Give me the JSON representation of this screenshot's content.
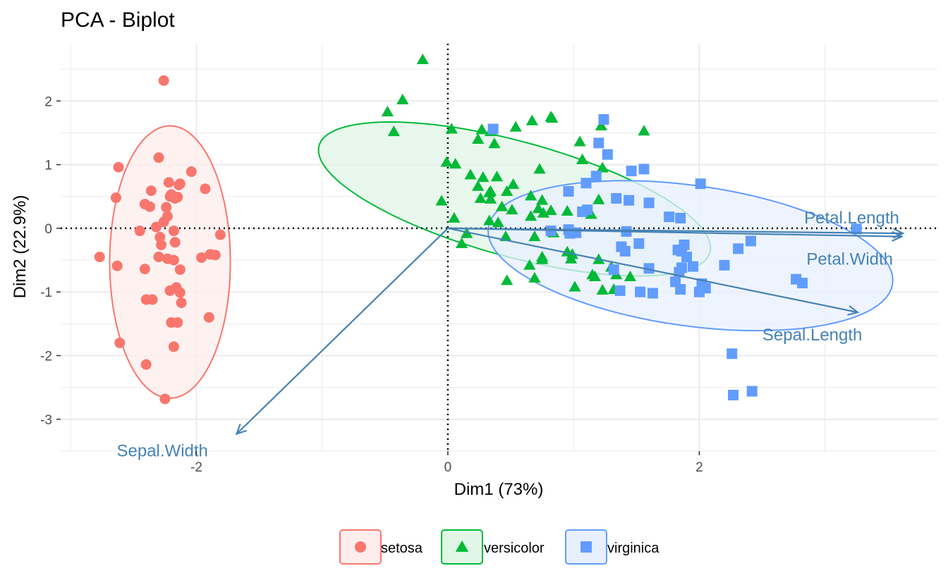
{
  "chart_data": {
    "type": "scatter",
    "title": "PCA - Biplot",
    "xlabel": "Dim1 (73%)",
    "ylabel": "Dim2 (22.9%)",
    "xlim": [
      -3.08,
      3.9
    ],
    "ylim": [
      -3.5,
      2.9
    ],
    "x_ticks": [
      -2,
      0,
      2
    ],
    "y_ticks": [
      -3,
      -2,
      -1,
      0,
      1,
      2
    ],
    "x_tick_labels": [
      "-2",
      "0",
      "2"
    ],
    "y_tick_labels": [
      "-3",
      "-2",
      "-1",
      "0",
      "1",
      "2"
    ],
    "grid": true,
    "legend_position": "bottom",
    "reference_lines": {
      "x": 0,
      "y": 0,
      "style": "dotted"
    },
    "series": [
      {
        "name": "setosa",
        "marker": "circle",
        "color": "#F8766D",
        "ellipse_fill": "#FEEDEC",
        "points": [
          [
            -2.26,
            2.32
          ],
          [
            -2.3,
            1.11
          ],
          [
            -2.62,
            0.96
          ],
          [
            -2.04,
            0.89
          ],
          [
            -2.64,
            0.48
          ],
          [
            -2.22,
            0.72
          ],
          [
            -2.13,
            0.7
          ],
          [
            -2.14,
            0.68
          ],
          [
            -1.93,
            0.62
          ],
          [
            -2.36,
            0.59
          ],
          [
            -2.2,
            0.53
          ],
          [
            -2.21,
            0.5
          ],
          [
            -2.15,
            0.49
          ],
          [
            -2.17,
            0.47
          ],
          [
            -2.41,
            0.38
          ],
          [
            -2.37,
            0.34
          ],
          [
            -2.24,
            0.33
          ],
          [
            -2.23,
            0.19
          ],
          [
            -2.26,
            0.1
          ],
          [
            -2.32,
            0.02
          ],
          [
            -2.18,
            -0.04
          ],
          [
            -2.45,
            -0.04
          ],
          [
            -1.81,
            -0.1
          ],
          [
            -2.29,
            -0.14
          ],
          [
            -2.17,
            -0.22
          ],
          [
            -2.28,
            -0.26
          ],
          [
            -1.89,
            -0.41
          ],
          [
            -1.85,
            -0.42
          ],
          [
            -2.77,
            -0.45
          ],
          [
            -2.3,
            -0.45
          ],
          [
            -1.96,
            -0.46
          ],
          [
            -2.23,
            -0.48
          ],
          [
            -2.18,
            -0.5
          ],
          [
            -2.63,
            -0.59
          ],
          [
            -2.41,
            -0.64
          ],
          [
            -2.13,
            -0.65
          ],
          [
            -2.16,
            -0.93
          ],
          [
            -2.21,
            -0.98
          ],
          [
            -2.13,
            -1.01
          ],
          [
            -2.4,
            -1.12
          ],
          [
            -2.35,
            -1.12
          ],
          [
            -2.12,
            -1.17
          ],
          [
            -1.9,
            -1.4
          ],
          [
            -2.15,
            -1.48
          ],
          [
            -2.2,
            -1.48
          ],
          [
            -2.61,
            -1.8
          ],
          [
            -2.18,
            -1.86
          ],
          [
            -2.4,
            -2.14
          ],
          [
            -2.25,
            -2.68
          ]
        ]
      },
      {
        "name": "versicolor",
        "marker": "triangle",
        "color": "#00BA38",
        "ellipse_fill": "#E1F6E6",
        "points": [
          [
            -0.2,
            2.65
          ],
          [
            -0.36,
            2.02
          ],
          [
            -0.48,
            1.83
          ],
          [
            -0.43,
            1.52
          ],
          [
            0.82,
            1.75
          ],
          [
            0.83,
            1.73
          ],
          [
            0.03,
            1.56
          ],
          [
            0.27,
            1.55
          ],
          [
            1.22,
            1.61
          ],
          [
            1.56,
            1.53
          ],
          [
            0.54,
            1.59
          ],
          [
            0.67,
            1.69
          ],
          [
            0.34,
            1.52
          ],
          [
            0.37,
            1.33
          ],
          [
            1.05,
            1.36
          ],
          [
            0.24,
            1.4
          ],
          [
            1.07,
            1.08
          ],
          [
            -0.01,
            1.04
          ],
          [
            0.06,
            1.01
          ],
          [
            0.73,
            0.93
          ],
          [
            1.23,
            0.95
          ],
          [
            0.18,
            0.84
          ],
          [
            0.28,
            0.8
          ],
          [
            0.39,
            0.81
          ],
          [
            0.24,
            0.66
          ],
          [
            0.34,
            0.58
          ],
          [
            0.52,
            0.69
          ],
          [
            0.66,
            0.51
          ],
          [
            1.2,
            0.45
          ],
          [
            0.33,
            0.56
          ],
          [
            0.47,
            0.58
          ],
          [
            0.34,
            0.46
          ],
          [
            0.75,
            0.44
          ],
          [
            -0.05,
            0.43
          ],
          [
            0.72,
            0.31
          ],
          [
            0.82,
            0.28
          ],
          [
            0.76,
            0.24
          ],
          [
            0.26,
            0.47
          ],
          [
            0.43,
            0.34
          ],
          [
            0.51,
            0.29
          ],
          [
            0.95,
            0.27
          ],
          [
            1.14,
            0.22
          ],
          [
            0.4,
            0.09
          ],
          [
            0.66,
            0.19
          ],
          [
            0.33,
            0.12
          ],
          [
            0.05,
            0.16
          ],
          [
            0.15,
            -0.08
          ],
          [
            0.46,
            -0.13
          ],
          [
            0.69,
            -0.13
          ],
          [
            0.84,
            -0.07
          ],
          [
            0.11,
            -0.24
          ],
          [
            0.99,
            -0.41
          ],
          [
            0.75,
            -0.45
          ],
          [
            0.98,
            -0.48
          ],
          [
            1.2,
            -0.49
          ],
          [
            0.95,
            -0.37
          ],
          [
            0.75,
            -0.49
          ],
          [
            0.65,
            -0.58
          ],
          [
            1.15,
            -0.73
          ],
          [
            1.01,
            -0.92
          ],
          [
            1.17,
            -0.76
          ],
          [
            1.34,
            -0.73
          ],
          [
            1.23,
            -0.97
          ],
          [
            1.32,
            -0.96
          ],
          [
            0.69,
            -0.78
          ],
          [
            1.3,
            -0.61
          ],
          [
            0.47,
            -0.82
          ],
          [
            1.45,
            -0.76
          ]
        ]
      },
      {
        "name": "virginica",
        "marker": "square",
        "color": "#619CFF",
        "ellipse_fill": "#E8F0FF",
        "points": [
          [
            1.24,
            1.71
          ],
          [
            0.36,
            1.56
          ],
          [
            1.2,
            1.34
          ],
          [
            1.27,
            1.16
          ],
          [
            1.46,
            0.9
          ],
          [
            1.18,
            0.82
          ],
          [
            1.1,
            0.71
          ],
          [
            0.96,
            0.58
          ],
          [
            1.34,
            0.47
          ],
          [
            1.44,
            0.44
          ],
          [
            1.6,
            0.4
          ],
          [
            1.56,
            0.93
          ],
          [
            2.01,
            0.7
          ],
          [
            1.11,
            0.29
          ],
          [
            1.07,
            0.26
          ],
          [
            1.85,
            0.16
          ],
          [
            1.76,
            0.18
          ],
          [
            3.25,
            -0.01
          ],
          [
            1.42,
            -0.05
          ],
          [
            0.96,
            -0.02
          ],
          [
            0.97,
            -0.08
          ],
          [
            0.82,
            -0.04
          ],
          [
            1.02,
            -0.07
          ],
          [
            1.38,
            -0.29
          ],
          [
            1.41,
            -0.36
          ],
          [
            1.52,
            -0.24
          ],
          [
            1.88,
            -0.26
          ],
          [
            2.41,
            -0.2
          ],
          [
            2.31,
            -0.32
          ],
          [
            1.83,
            -0.34
          ],
          [
            1.86,
            -0.36
          ],
          [
            1.9,
            -0.45
          ],
          [
            2.2,
            -0.58
          ],
          [
            1.95,
            -0.6
          ],
          [
            1.86,
            -0.62
          ],
          [
            1.84,
            -0.69
          ],
          [
            1.32,
            -0.65
          ],
          [
            1.6,
            -0.63
          ],
          [
            1.81,
            -0.84
          ],
          [
            2.05,
            -0.94
          ],
          [
            1.85,
            -0.96
          ],
          [
            2.0,
            -1.0
          ],
          [
            2.02,
            -0.87
          ],
          [
            1.63,
            -1.02
          ],
          [
            1.53,
            -1.0
          ],
          [
            1.37,
            -0.98
          ],
          [
            2.77,
            -0.8
          ],
          [
            2.82,
            -0.86
          ],
          [
            2.26,
            -1.97
          ],
          [
            2.27,
            -2.62
          ],
          [
            2.42,
            -2.56
          ]
        ]
      }
    ],
    "ellipses": [
      {
        "series": "setosa",
        "cx": -2.21,
        "cy": -0.53,
        "rx": 0.48,
        "ry": 2.14,
        "angle_deg": 0
      },
      {
        "series": "versicolor",
        "cx": 0.53,
        "cy": 0.46,
        "rx": 1.8,
        "ry": 0.81,
        "angle_deg": -34
      },
      {
        "series": "virginica",
        "cx": 1.93,
        "cy": -0.43,
        "rx": 1.69,
        "ry": 1.06,
        "angle_deg": -23
      }
    ],
    "variables": [
      {
        "name": "Petal.Length",
        "x": 3.62,
        "y": -0.08
      },
      {
        "name": "Petal.Width",
        "x": 3.61,
        "y": -0.13
      },
      {
        "name": "Sepal.Length",
        "x": 3.26,
        "y": -1.32
      },
      {
        "name": "Sepal.Width",
        "x": -1.68,
        "y": -3.23
      }
    ],
    "variable_color": "#4682B4",
    "grid_color": "#EBEBEB"
  }
}
